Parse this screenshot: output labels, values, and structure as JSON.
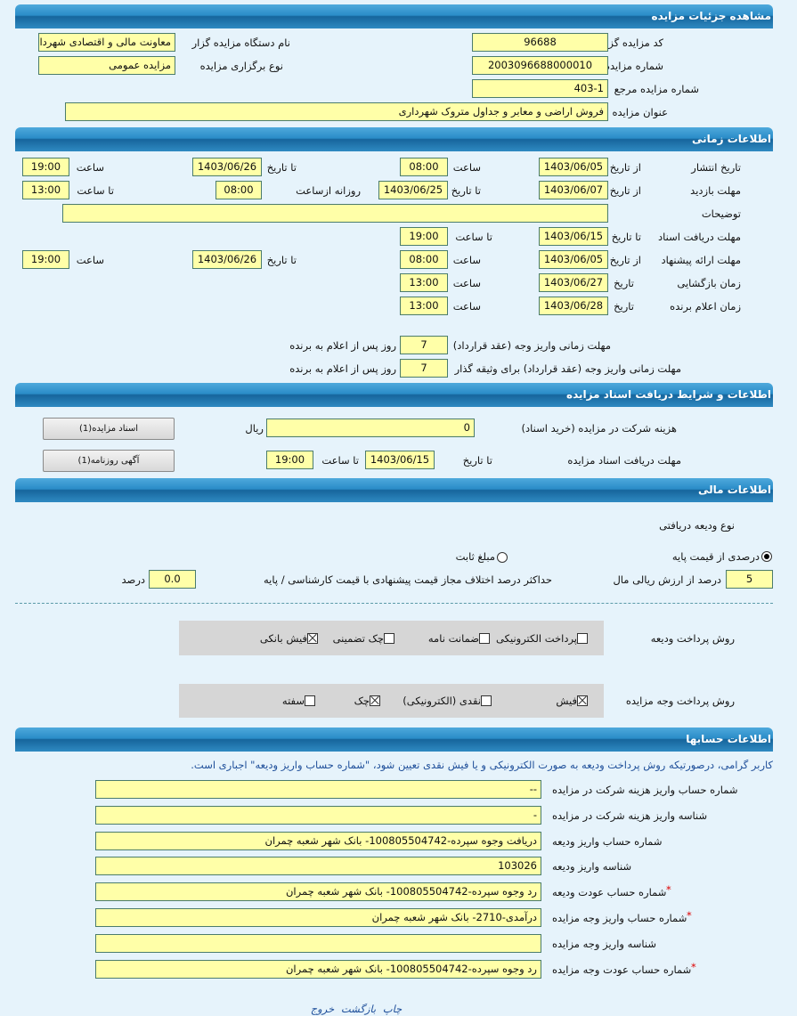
{
  "headers": {
    "details": "مشاهده جزئیات مزایده",
    "timing": "اطلاعات زمانی",
    "documents": "اطلاعات و شرایط دریافت اسناد مزایده",
    "financial": "اطلاعات مالی",
    "accounts": "اطلاعات حسابها"
  },
  "details": {
    "organizer_code_label": "کد مزایده گزار",
    "organizer_code": "96688",
    "organizer_name_label": "نام دستگاه مزایده گزار",
    "organizer_name": "معاونت مالی و اقتصادی شهرداری",
    "auction_number_label": "شماره مزایده",
    "auction_number": "2003096688000010",
    "holding_type_label": "نوع برگزاری مزایده",
    "holding_type": "مزایده عمومی",
    "reference_number_label": "شماره مزایده مرجع",
    "reference_number": "403-1",
    "title_label": "عنوان مزایده",
    "title": "فروش اراضی و معابر و جداول متروک شهرداری"
  },
  "timing": {
    "from_date": "از تاریخ",
    "to_date": "تا تاریخ",
    "date": "تاریخ",
    "time": "ساعت",
    "to_time": "تا ساعت",
    "daily_from_time": "روزانه ازساعت",
    "publish_label": "تاریخ انتشار",
    "publish_from_date": "1403/06/05",
    "publish_from_time": "08:00",
    "publish_to_date": "1403/06/26",
    "publish_to_time": "19:00",
    "visit_label": "مهلت بازدید",
    "visit_from_date": "1403/06/07",
    "visit_to_date": "1403/06/25",
    "visit_daily_from": "08:00",
    "visit_to_time": "13:00",
    "description_label": "توضیحات",
    "description": "",
    "docs_deadline_label": "مهلت دریافت اسناد",
    "docs_to_date": "1403/06/15",
    "docs_to_time": "19:00",
    "offer_label": "مهلت ارائه پیشنهاد",
    "offer_from_date": "1403/06/05",
    "offer_from_time": "08:00",
    "offer_to_date": "1403/06/26",
    "offer_to_time": "19:00",
    "opening_label": "زمان بازگشایی",
    "opening_date": "1403/06/27",
    "opening_time": "13:00",
    "winner_label": "زمان اعلام برنده",
    "winner_date": "1403/06/28",
    "winner_time": "13:00",
    "payment_deadline_label": "مهلت زمانی واریز وجه (عقد قرارداد)",
    "payment_deadline_days": "7",
    "payment_deadline_suffix": "روز پس از اعلام به برنده",
    "collateral_deadline_label": "مهلت زمانی واریز وجه (عقد قرارداد) برای وثیقه گذار",
    "collateral_deadline_days": "7",
    "collateral_deadline_suffix": "روز پس از اعلام به برنده"
  },
  "documents": {
    "fee_label": "هزینه شرکت در مزایده (خرید اسناد)",
    "fee": "0",
    "currency": "ریال",
    "docs_button": "اسناد مزایده(1)",
    "deadline_label": "مهلت دریافت اسناد مزایده",
    "to_date_label": "تا تاریخ",
    "to_date": "1403/06/15",
    "to_time_label": "تا ساعت",
    "to_time": "19:00",
    "newspaper_button": "آگهی روزنامه(1)"
  },
  "financial": {
    "deposit_type_label": "نوع ودیعه دریافتی",
    "option_percent": "درصدی از قیمت پایه",
    "option_percent_selected": true,
    "option_fixed": "مبلغ ثابت",
    "option_fixed_selected": false,
    "percent_value": "5",
    "percent_suffix": "درصد از ارزش ریالی مال",
    "max_diff_label": "حداکثر درصد اختلاف مجاز قیمت پیشنهادی با قیمت کارشناسی / پایه",
    "max_diff_value": "0.0",
    "max_diff_unit": "درصد",
    "deposit_method_label": "روش پرداخت ودیعه",
    "deposit_methods": [
      {
        "label": "پرداخت الکترونیکی",
        "checked": false
      },
      {
        "label": "ضمانت نامه",
        "checked": false
      },
      {
        "label": "چک تضمینی",
        "checked": false
      },
      {
        "label": "فیش بانکی",
        "checked": true
      }
    ],
    "payment_method_label": "روش پرداخت وجه مزایده",
    "payment_methods": [
      {
        "label": "فیش",
        "checked": true
      },
      {
        "label": "نقدی (الکترونیکی)",
        "checked": false
      },
      {
        "label": "چک",
        "checked": true
      },
      {
        "label": "سفته",
        "checked": false
      }
    ]
  },
  "accounts": {
    "notice": "کاربر گرامی، درصورتیکه روش پرداخت ودیعه به صورت الکترونیکی و یا فیش نقدی تعیین شود، \"شماره حساب واریز ودیعه\" اجباری است.",
    "rows": [
      {
        "label": "شماره حساب واریز هزینه شرکت در مزایده",
        "value": "--",
        "required": false
      },
      {
        "label": "شناسه واریز هزینه شرکت در مزایده",
        "value": "-",
        "required": false
      },
      {
        "label": "شماره حساب واریز ودیعه",
        "value": "دریافت وجوه سپرده-100805504742- بانک شهر شعبه چمران",
        "required": false
      },
      {
        "label": "شناسه واریز ودیعه",
        "value": "103026",
        "required": false
      },
      {
        "label": "شماره حساب عودت ودیعه",
        "value": "رد وجوه سپرده-100805504742- بانک شهر شعبه چمران",
        "required": true
      },
      {
        "label": "شماره حساب واریز وجه مزایده",
        "value": "درآمدی-2710- بانک شهر شعبه چمران",
        "required": true
      },
      {
        "label": "شناسه واریز وجه مزایده",
        "value": "",
        "required": false
      },
      {
        "label": "شماره حساب عودت وجه مزایده",
        "value": "رد وجوه سپرده-100805504742- بانک شهر شعبه چمران",
        "required": true
      }
    ],
    "required_mark": "*"
  },
  "footer": {
    "print": "چاپ",
    "back": "بازگشت",
    "exit": "خروج"
  },
  "colors": {
    "header": "#2a8cc8",
    "background": "#e6f3fb",
    "field": "#ffffa8",
    "link": "#1f4f9a",
    "required": "#dd0000"
  }
}
